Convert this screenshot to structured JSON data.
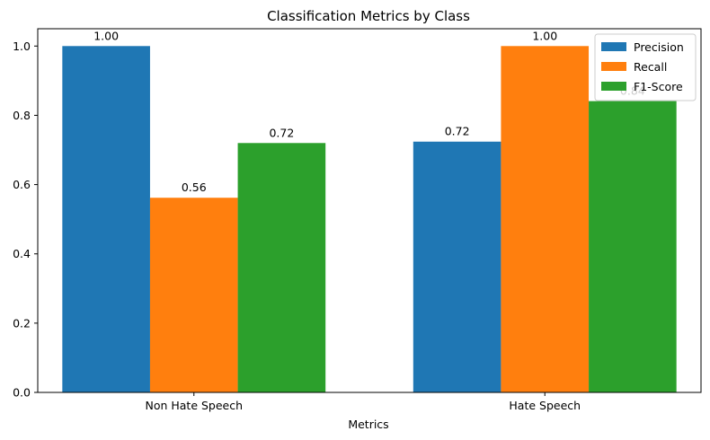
{
  "chart_data": {
    "type": "bar",
    "title": "Classification Metrics by Class",
    "xlabel": "Metrics",
    "ylabel": "",
    "ylim": [
      0,
      1.05
    ],
    "yticks": [
      0.0,
      0.2,
      0.4,
      0.6,
      0.8,
      1.0
    ],
    "ytick_labels": [
      "0.0",
      "0.2",
      "0.4",
      "0.6",
      "0.8",
      "1.0"
    ],
    "categories": [
      "Non Hate Speech",
      "Hate Speech"
    ],
    "series": [
      {
        "name": "Precision",
        "color": "#1f77b4",
        "values": [
          1.0,
          0.724
        ],
        "labels": [
          "1.00",
          "0.72"
        ]
      },
      {
        "name": "Recall",
        "color": "#ff7f0e",
        "values": [
          0.562,
          1.0
        ],
        "labels": [
          "0.56",
          "1.00"
        ]
      },
      {
        "name": "F1-Score",
        "color": "#2ca02c",
        "values": [
          0.72,
          0.841
        ],
        "labels": [
          "0.72",
          "0.84"
        ]
      }
    ],
    "legend_position": "top-right",
    "grid": false
  }
}
